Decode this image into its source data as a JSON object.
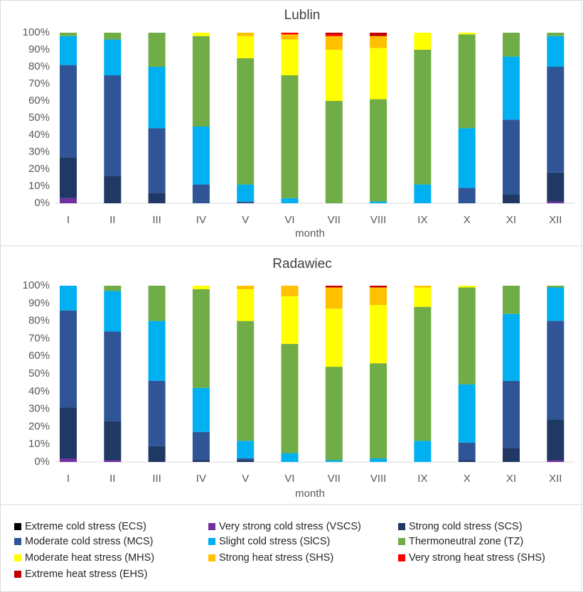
{
  "chart_data": [
    {
      "type": "bar",
      "stacked": true,
      "title": "Lublin",
      "x_label": "month",
      "categories": [
        "I",
        "II",
        "III",
        "IV",
        "V",
        "VI",
        "VII",
        "VIII",
        "IX",
        "X",
        "XI",
        "XII"
      ],
      "ylim": [
        0,
        100
      ],
      "yticks": [
        {
          "value": 0,
          "label": "0%"
        },
        {
          "value": 10,
          "label": "10%"
        },
        {
          "value": 20,
          "label": "20%"
        },
        {
          "value": 30,
          "label": "30%"
        },
        {
          "value": 40,
          "label": "40%"
        },
        {
          "value": 50,
          "label": "50%"
        },
        {
          "value": 60,
          "label": "60%"
        },
        {
          "value": 70,
          "label": "70%"
        },
        {
          "value": 80,
          "label": "80%"
        },
        {
          "value": 90,
          "label": "90%"
        },
        {
          "value": 100,
          "label": "100%"
        }
      ],
      "series": [
        {
          "name": "Extreme cold stress (ECS)",
          "color": "#000000",
          "values": [
            0,
            0,
            0,
            0,
            0,
            0,
            0,
            0,
            0,
            0,
            0,
            0
          ]
        },
        {
          "name": "Very strong cold stress (VSCS)",
          "color": "#7030a0",
          "values": [
            3,
            0,
            0,
            0,
            0,
            0,
            0,
            0,
            0,
            0,
            0,
            1
          ]
        },
        {
          "name": "Strong cold stress (SCS)",
          "color": "#1f3864",
          "values": [
            24,
            16,
            6,
            0,
            0,
            0,
            0,
            0,
            0,
            0,
            5,
            17
          ]
        },
        {
          "name": "Moderate cold stress (MCS)",
          "color": "#2f5597",
          "values": [
            54,
            59,
            38,
            11,
            1,
            0,
            0,
            0,
            0,
            9,
            44,
            62
          ]
        },
        {
          "name": "Slight cold stress (SlCS)",
          "color": "#00b0f0",
          "values": [
            17,
            21,
            36,
            34,
            10,
            3,
            0,
            1,
            11,
            35,
            37,
            18
          ]
        },
        {
          "name": "Thermoneutral zone (TZ)",
          "color": "#70ad47",
          "values": [
            2,
            4,
            20,
            53,
            74,
            72,
            60,
            60,
            79,
            55,
            14,
            2
          ]
        },
        {
          "name": "Moderate heat stress (MHS)",
          "color": "#ffff00",
          "values": [
            0,
            0,
            0,
            2,
            13,
            21,
            30,
            30,
            10,
            1,
            0,
            0
          ]
        },
        {
          "name": "Strong heat stress (SHS)",
          "color": "#ffc000",
          "values": [
            0,
            0,
            0,
            0,
            2,
            3,
            8,
            7,
            0,
            0,
            0,
            0
          ]
        },
        {
          "name": "Very strong heat stress (SHS)",
          "color": "#ff0000",
          "values": [
            0,
            0,
            0,
            0,
            0,
            1,
            1,
            0,
            0,
            0,
            0,
            0
          ]
        },
        {
          "name": "Extreme heat stress (EHS)",
          "color": "#c00000",
          "values": [
            0,
            0,
            0,
            0,
            0,
            0,
            1,
            2,
            0,
            0,
            0,
            0
          ]
        }
      ]
    },
    {
      "type": "bar",
      "stacked": true,
      "title": "Radawiec",
      "x_label": "month",
      "categories": [
        "I",
        "II",
        "III",
        "IV",
        "V",
        "VI",
        "VII",
        "VIII",
        "IX",
        "X",
        "XI",
        "XII"
      ],
      "ylim": [
        0,
        100
      ],
      "yticks": [
        {
          "value": 0,
          "label": "0%"
        },
        {
          "value": 10,
          "label": "10%"
        },
        {
          "value": 20,
          "label": "20%"
        },
        {
          "value": 30,
          "label": "30%"
        },
        {
          "value": 40,
          "label": "40%"
        },
        {
          "value": 50,
          "label": "50%"
        },
        {
          "value": 60,
          "label": "60%"
        },
        {
          "value": 70,
          "label": "70%"
        },
        {
          "value": 80,
          "label": "80%"
        },
        {
          "value": 90,
          "label": "90%"
        },
        {
          "value": 100,
          "label": "100%"
        }
      ],
      "series": [
        {
          "color": "#000000",
          "values": [
            0,
            0,
            0,
            0,
            0,
            0,
            0,
            0,
            0,
            0,
            0,
            0
          ]
        },
        {
          "color": "#7030a0",
          "values": [
            2,
            1,
            0,
            0,
            0,
            0,
            0,
            0,
            0,
            0,
            0,
            1
          ]
        },
        {
          "color": "#1f3864",
          "values": [
            29,
            22,
            9,
            1,
            1,
            0,
            0,
            0,
            0,
            1,
            8,
            23
          ]
        },
        {
          "color": "#2f5597",
          "values": [
            55,
            51,
            37,
            16,
            1,
            0,
            0,
            0,
            0,
            10,
            38,
            56
          ]
        },
        {
          "color": "#00b0f0",
          "values": [
            14,
            23,
            34,
            25,
            10,
            5,
            1,
            2,
            12,
            33,
            38,
            19
          ]
        },
        {
          "color": "#70ad47",
          "values": [
            0,
            3,
            20,
            56,
            68,
            62,
            53,
            54,
            76,
            55,
            16,
            1
          ]
        },
        {
          "color": "#ffff00",
          "values": [
            0,
            0,
            0,
            2,
            18,
            27,
            33,
            33,
            11,
            1,
            0,
            0
          ]
        },
        {
          "color": "#ffc000",
          "values": [
            0,
            0,
            0,
            0,
            2,
            6,
            12,
            10,
            1,
            0,
            0,
            0
          ]
        },
        {
          "color": "#ff0000",
          "values": [
            0,
            0,
            0,
            0,
            0,
            0,
            0,
            0,
            0,
            0,
            0,
            0
          ]
        },
        {
          "color": "#c00000",
          "values": [
            0,
            0,
            0,
            0,
            0,
            0,
            1,
            1,
            0,
            0,
            0,
            0
          ]
        }
      ]
    }
  ]
}
